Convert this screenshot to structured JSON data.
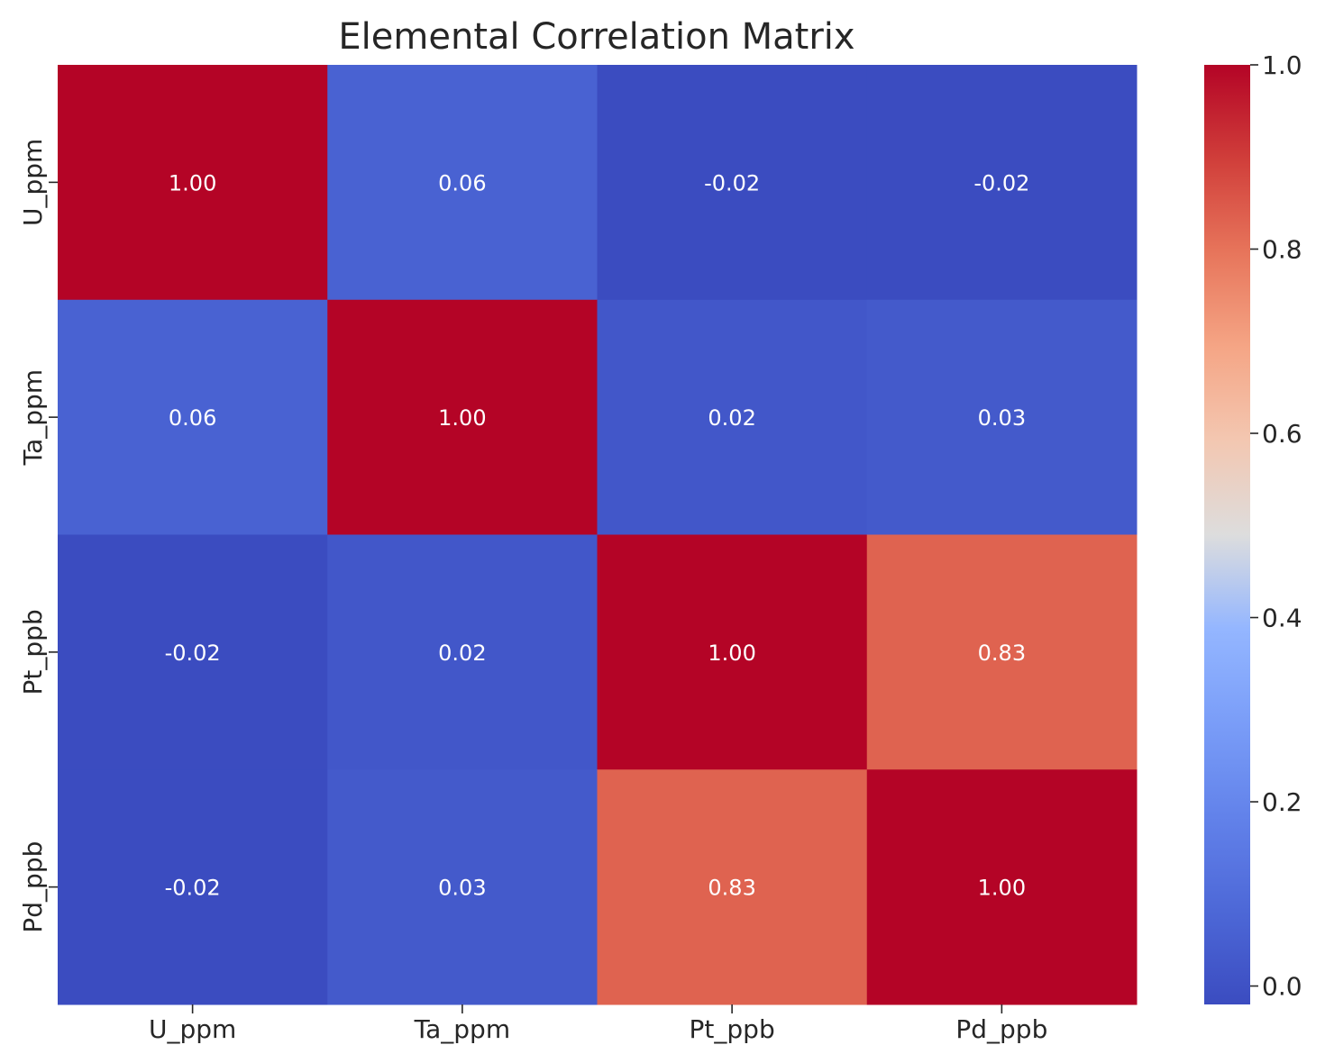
{
  "chart_data": {
    "type": "heatmap",
    "title": "Elemental Correlation Matrix",
    "xlabel": "",
    "ylabel": "",
    "x_categories": [
      "U_ppm",
      "Ta_ppm",
      "Pt_ppb",
      "Pd_ppb"
    ],
    "y_categories": [
      "U_ppm",
      "Ta_ppm",
      "Pt_ppb",
      "Pd_ppb"
    ],
    "values": [
      [
        1.0,
        0.06,
        -0.02,
        -0.02
      ],
      [
        0.06,
        1.0,
        0.02,
        0.03
      ],
      [
        -0.02,
        0.02,
        1.0,
        0.83
      ],
      [
        -0.02,
        0.03,
        0.83,
        1.0
      ]
    ],
    "cell_labels": [
      [
        "1.00",
        "0.06",
        "-0.02",
        "-0.02"
      ],
      [
        "0.06",
        "1.00",
        "0.02",
        "0.03"
      ],
      [
        "-0.02",
        "0.02",
        "1.00",
        "0.83"
      ],
      [
        "-0.02",
        "0.03",
        "0.83",
        "1.00"
      ]
    ],
    "colormap": "coolwarm",
    "vmin": -0.02,
    "vmax": 1.0,
    "colorbar_ticks": [
      "0.0",
      "0.2",
      "0.4",
      "0.6",
      "0.8",
      "1.0"
    ],
    "colorbar_tick_values": [
      0.0,
      0.2,
      0.4,
      0.6,
      0.8,
      1.0
    ],
    "annotation_color": "#ffffff",
    "text_color": "#262626"
  }
}
